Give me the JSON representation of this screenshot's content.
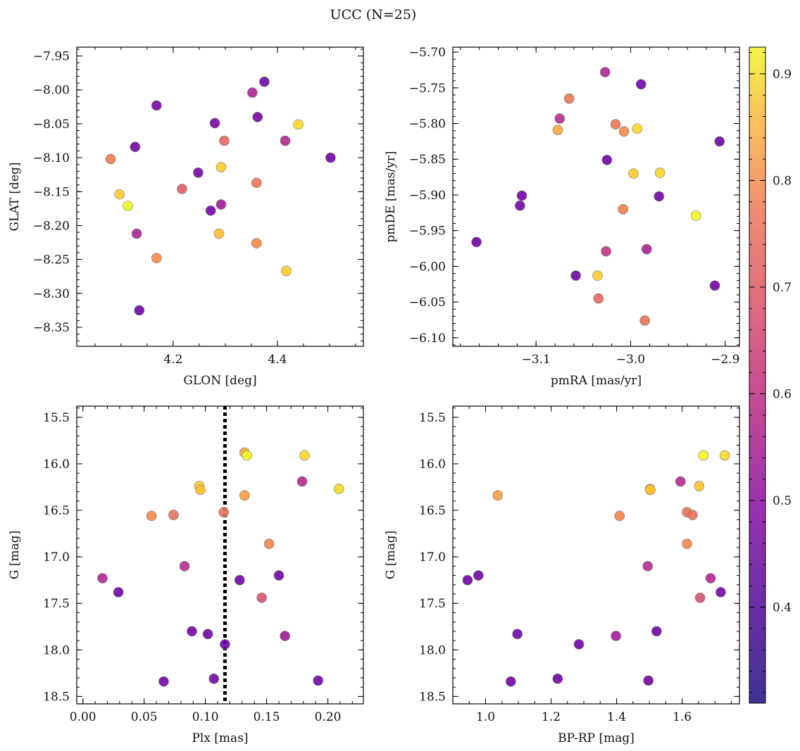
{
  "figure": {
    "title": "UCC (N=25)"
  },
  "colorbar": {
    "min": 0.31,
    "max": 0.925,
    "ticks": [
      0.4,
      0.5,
      0.6,
      0.7,
      0.8,
      0.9
    ],
    "tick_labels": [
      "0.4",
      "0.5",
      "0.6",
      "0.7",
      "0.8",
      "0.9"
    ],
    "colormap": "plasma"
  },
  "chart_data": [
    {
      "type": "scatter",
      "id": "glon-glat",
      "xlabel": "GLON [deg]",
      "ylabel": "GLAT [deg]",
      "xlim": [
        4.015,
        4.565
      ],
      "ylim": [
        -8.378,
        -7.937
      ],
      "y_inverted": false,
      "xticks": [
        4.2,
        4.4
      ],
      "xtick_labels": [
        "4.2",
        "4.4"
      ],
      "yticks": [
        -7.95,
        -8.0,
        -8.05,
        -8.1,
        -8.15,
        -8.2,
        -8.25,
        -8.3,
        -8.35
      ],
      "ytick_labels": [
        "−7.95",
        "−8.00",
        "−8.05",
        "−8.10",
        "−8.15",
        "−8.20",
        "−8.25",
        "−8.30",
        "−8.35"
      ],
      "points": [
        {
          "x": 4.375,
          "y": -7.988,
          "c": 0.35
        },
        {
          "x": 4.352,
          "y": -8.004,
          "c": 0.47
        },
        {
          "x": 4.168,
          "y": -8.023,
          "c": 0.37
        },
        {
          "x": 4.362,
          "y": -8.04,
          "c": 0.37
        },
        {
          "x": 4.28,
          "y": -8.049,
          "c": 0.37
        },
        {
          "x": 4.44,
          "y": -8.051,
          "c": 0.8
        },
        {
          "x": 4.298,
          "y": -8.075,
          "c": 0.6
        },
        {
          "x": 4.415,
          "y": -8.075,
          "c": 0.47
        },
        {
          "x": 4.127,
          "y": -8.084,
          "c": 0.36
        },
        {
          "x": 4.08,
          "y": -8.102,
          "c": 0.64
        },
        {
          "x": 4.502,
          "y": -8.1,
          "c": 0.36
        },
        {
          "x": 4.292,
          "y": -8.114,
          "c": 0.78
        },
        {
          "x": 4.248,
          "y": -8.122,
          "c": 0.37
        },
        {
          "x": 4.36,
          "y": -8.137,
          "c": 0.63
        },
        {
          "x": 4.217,
          "y": -8.146,
          "c": 0.58
        },
        {
          "x": 4.097,
          "y": -8.154,
          "c": 0.78
        },
        {
          "x": 4.113,
          "y": -8.171,
          "c": 0.92
        },
        {
          "x": 4.292,
          "y": -8.169,
          "c": 0.44
        },
        {
          "x": 4.272,
          "y": -8.178,
          "c": 0.37
        },
        {
          "x": 4.13,
          "y": -8.212,
          "c": 0.46
        },
        {
          "x": 4.288,
          "y": -8.212,
          "c": 0.75
        },
        {
          "x": 4.36,
          "y": -8.226,
          "c": 0.67
        },
        {
          "x": 4.168,
          "y": -8.248,
          "c": 0.67
        },
        {
          "x": 4.417,
          "y": -8.267,
          "c": 0.78
        },
        {
          "x": 4.135,
          "y": -8.325,
          "c": 0.35
        }
      ]
    },
    {
      "type": "scatter",
      "id": "pmra-pmde",
      "xlabel": "pmRA [mas/yr]",
      "ylabel": "pmDE [mas/yr]",
      "xlim": [
        -3.188,
        -2.885
      ],
      "ylim": [
        -6.112,
        -5.693
      ],
      "y_inverted": false,
      "xticks": [
        -3.1,
        -3.0,
        -2.9
      ],
      "xtick_labels": [
        "−3.1",
        "−3.0",
        "−2.9"
      ],
      "yticks": [
        -5.7,
        -5.75,
        -5.8,
        -5.85,
        -5.9,
        -5.95,
        -6.0,
        -6.05,
        -6.1
      ],
      "ytick_labels": [
        "−5.70",
        "−5.75",
        "−5.80",
        "−5.85",
        "−5.90",
        "−5.95",
        "−6.00",
        "−6.05",
        "−6.10"
      ],
      "points": [
        {
          "x": -3.027,
          "y": -5.728,
          "c": 0.47
        },
        {
          "x": -2.989,
          "y": -5.745,
          "c": 0.36
        },
        {
          "x": -3.065,
          "y": -5.765,
          "c": 0.63
        },
        {
          "x": -3.075,
          "y": -5.793,
          "c": 0.48
        },
        {
          "x": -3.016,
          "y": -5.801,
          "c": 0.63
        },
        {
          "x": -2.993,
          "y": -5.807,
          "c": 0.8
        },
        {
          "x": -3.077,
          "y": -5.809,
          "c": 0.72
        },
        {
          "x": -3.007,
          "y": -5.811,
          "c": 0.67
        },
        {
          "x": -2.906,
          "y": -5.825,
          "c": 0.36
        },
        {
          "x": -3.025,
          "y": -5.851,
          "c": 0.36
        },
        {
          "x": -2.969,
          "y": -5.869,
          "c": 0.8
        },
        {
          "x": -2.997,
          "y": -5.87,
          "c": 0.78
        },
        {
          "x": -3.115,
          "y": -5.901,
          "c": 0.36
        },
        {
          "x": -2.97,
          "y": -5.902,
          "c": 0.36
        },
        {
          "x": -3.117,
          "y": -5.915,
          "c": 0.36
        },
        {
          "x": -3.008,
          "y": -5.92,
          "c": 0.65
        },
        {
          "x": -2.931,
          "y": -5.929,
          "c": 0.92
        },
        {
          "x": -3.163,
          "y": -5.966,
          "c": 0.36
        },
        {
          "x": -2.983,
          "y": -5.976,
          "c": 0.46
        },
        {
          "x": -3.026,
          "y": -5.979,
          "c": 0.5
        },
        {
          "x": -3.058,
          "y": -6.013,
          "c": 0.36
        },
        {
          "x": -3.035,
          "y": -6.013,
          "c": 0.78
        },
        {
          "x": -2.911,
          "y": -6.027,
          "c": 0.36
        },
        {
          "x": -3.034,
          "y": -6.045,
          "c": 0.6
        },
        {
          "x": -2.985,
          "y": -6.076,
          "c": 0.62
        }
      ]
    },
    {
      "type": "scatter",
      "id": "plx-g",
      "xlabel": "Plx [mas]",
      "ylabel": "G [mag]",
      "xlim": [
        -0.005,
        0.229
      ],
      "ylim": [
        18.58,
        15.38
      ],
      "y_inverted": true,
      "xticks": [
        0.0,
        0.05,
        0.1,
        0.15,
        0.2
      ],
      "xtick_labels": [
        "0.00",
        "0.05",
        "0.10",
        "0.15",
        "0.20"
      ],
      "yticks": [
        15.5,
        16.0,
        16.5,
        17.0,
        17.5,
        18.0,
        18.5
      ],
      "ytick_labels": [
        "15.5",
        "16.0",
        "16.5",
        "17.0",
        "17.5",
        "18.0",
        "18.5"
      ],
      "vline": {
        "x": 0.116,
        "style": "dotted",
        "color": "#000000"
      },
      "points": [
        {
          "x": 0.132,
          "y": 15.88,
          "c": 0.72
        },
        {
          "x": 0.134,
          "y": 15.91,
          "c": 0.92
        },
        {
          "x": 0.181,
          "y": 15.91,
          "c": 0.8
        },
        {
          "x": 0.179,
          "y": 16.19,
          "c": 0.47
        },
        {
          "x": 0.095,
          "y": 16.24,
          "c": 0.78
        },
        {
          "x": 0.096,
          "y": 16.28,
          "c": 0.75
        },
        {
          "x": 0.209,
          "y": 16.27,
          "c": 0.8
        },
        {
          "x": 0.132,
          "y": 16.34,
          "c": 0.7
        },
        {
          "x": 0.115,
          "y": 16.52,
          "c": 0.62
        },
        {
          "x": 0.056,
          "y": 16.56,
          "c": 0.66
        },
        {
          "x": 0.074,
          "y": 16.55,
          "c": 0.62
        },
        {
          "x": 0.152,
          "y": 16.86,
          "c": 0.66
        },
        {
          "x": 0.083,
          "y": 17.1,
          "c": 0.48
        },
        {
          "x": 0.16,
          "y": 17.2,
          "c": 0.36
        },
        {
          "x": 0.016,
          "y": 17.23,
          "c": 0.47
        },
        {
          "x": 0.128,
          "y": 17.25,
          "c": 0.36
        },
        {
          "x": 0.029,
          "y": 17.38,
          "c": 0.36
        },
        {
          "x": 0.146,
          "y": 17.44,
          "c": 0.56
        },
        {
          "x": 0.089,
          "y": 17.8,
          "c": 0.36
        },
        {
          "x": 0.102,
          "y": 17.83,
          "c": 0.36
        },
        {
          "x": 0.165,
          "y": 17.85,
          "c": 0.44
        },
        {
          "x": 0.116,
          "y": 17.94,
          "c": 0.36
        },
        {
          "x": 0.107,
          "y": 18.31,
          "c": 0.36
        },
        {
          "x": 0.192,
          "y": 18.33,
          "c": 0.36
        },
        {
          "x": 0.066,
          "y": 18.34,
          "c": 0.36
        }
      ]
    },
    {
      "type": "scatter",
      "id": "bprp-g",
      "xlabel": "BP-RP [mag]",
      "ylabel": "G [mag]",
      "xlim": [
        0.9,
        1.775
      ],
      "ylim": [
        18.58,
        15.38
      ],
      "y_inverted": true,
      "xticks": [
        1.0,
        1.2,
        1.4,
        1.6
      ],
      "xtick_labels": [
        "1.0",
        "1.2",
        "1.4",
        "1.6"
      ],
      "yticks": [
        15.5,
        16.0,
        16.5,
        17.0,
        17.5,
        18.0,
        18.5
      ],
      "ytick_labels": [
        "15.5",
        "16.0",
        "16.5",
        "17.0",
        "17.5",
        "18.0",
        "18.5"
      ],
      "points": [
        {
          "x": 1.665,
          "y": 15.91,
          "c": 0.92
        },
        {
          "x": 1.73,
          "y": 15.91,
          "c": 0.8
        },
        {
          "x": 1.595,
          "y": 16.19,
          "c": 0.47
        },
        {
          "x": 1.652,
          "y": 16.24,
          "c": 0.76
        },
        {
          "x": 1.502,
          "y": 16.27,
          "c": 0.8
        },
        {
          "x": 1.503,
          "y": 16.28,
          "c": 0.75
        },
        {
          "x": 1.037,
          "y": 16.34,
          "c": 0.7
        },
        {
          "x": 1.615,
          "y": 16.52,
          "c": 0.62
        },
        {
          "x": 1.632,
          "y": 16.55,
          "c": 0.62
        },
        {
          "x": 1.409,
          "y": 16.56,
          "c": 0.66
        },
        {
          "x": 1.615,
          "y": 16.86,
          "c": 0.66
        },
        {
          "x": 1.495,
          "y": 17.1,
          "c": 0.48
        },
        {
          "x": 0.978,
          "y": 17.2,
          "c": 0.36
        },
        {
          "x": 1.687,
          "y": 17.23,
          "c": 0.47
        },
        {
          "x": 0.945,
          "y": 17.25,
          "c": 0.36
        },
        {
          "x": 1.718,
          "y": 17.38,
          "c": 0.36
        },
        {
          "x": 1.655,
          "y": 17.44,
          "c": 0.56
        },
        {
          "x": 1.522,
          "y": 17.8,
          "c": 0.36
        },
        {
          "x": 1.097,
          "y": 17.83,
          "c": 0.36
        },
        {
          "x": 1.398,
          "y": 17.85,
          "c": 0.44
        },
        {
          "x": 1.285,
          "y": 17.94,
          "c": 0.36
        },
        {
          "x": 1.22,
          "y": 18.31,
          "c": 0.36
        },
        {
          "x": 1.497,
          "y": 18.33,
          "c": 0.36
        },
        {
          "x": 1.077,
          "y": 18.34,
          "c": 0.36
        }
      ]
    }
  ]
}
